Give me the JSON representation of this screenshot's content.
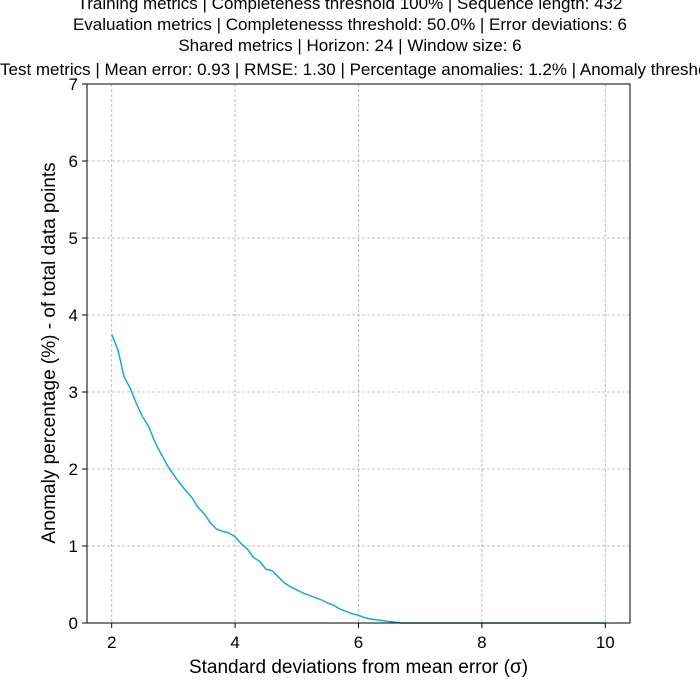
{
  "chart_data": {
    "type": "line",
    "title_lines": [
      "Training metrics | Completeness threshold 100% | Sequence length: 432",
      "Evaluation metrics | Completenesss threshold: 50.0% | Error deviations: 6",
      "Shared metrics | Horizon: 24 | Window size: 6",
      "Test metrics | Mean error: 0.93 | RMSE: 1.30 | Percentage anomalies: 1.2% | Anomaly threshold"
    ],
    "xlabel": "Standard deviations from mean error (σ)",
    "ylabel": "Anomaly percentage (%) - of total data points",
    "xlim": [
      1.6,
      10.4
    ],
    "ylim": [
      0,
      7
    ],
    "xticks": [
      2,
      4,
      6,
      8,
      10
    ],
    "yticks": [
      0,
      1,
      2,
      3,
      4,
      5,
      6,
      7
    ],
    "grid": true,
    "line_color": "#17a9d6",
    "series": [
      {
        "x": [
          2.0,
          2.1,
          2.2,
          2.3,
          2.4,
          2.5,
          2.6,
          2.7,
          2.8,
          2.9,
          3.0,
          3.1,
          3.2,
          3.3,
          3.4,
          3.5,
          3.6,
          3.7,
          3.8,
          3.9,
          4.0,
          4.1,
          4.2,
          4.3,
          4.4,
          4.5,
          4.6,
          4.7,
          4.8,
          4.9,
          5.0,
          5.1,
          5.2,
          5.3,
          5.4,
          5.5,
          5.6,
          5.7,
          5.8,
          5.9,
          6.0,
          6.1,
          6.2,
          6.3,
          6.4,
          6.5,
          6.6,
          6.7,
          6.8,
          7.0,
          8.0,
          9.0,
          10.0
        ],
        "y": [
          3.75,
          3.55,
          3.2,
          3.05,
          2.85,
          2.68,
          2.55,
          2.35,
          2.2,
          2.05,
          1.93,
          1.82,
          1.72,
          1.63,
          1.5,
          1.42,
          1.3,
          1.22,
          1.19,
          1.17,
          1.12,
          1.03,
          0.96,
          0.85,
          0.8,
          0.7,
          0.68,
          0.6,
          0.52,
          0.47,
          0.43,
          0.39,
          0.36,
          0.33,
          0.3,
          0.26,
          0.23,
          0.18,
          0.15,
          0.12,
          0.1,
          0.07,
          0.05,
          0.04,
          0.03,
          0.02,
          0.01,
          0.0,
          0.0,
          0.0,
          0.0,
          0.0,
          0.0
        ]
      }
    ]
  }
}
